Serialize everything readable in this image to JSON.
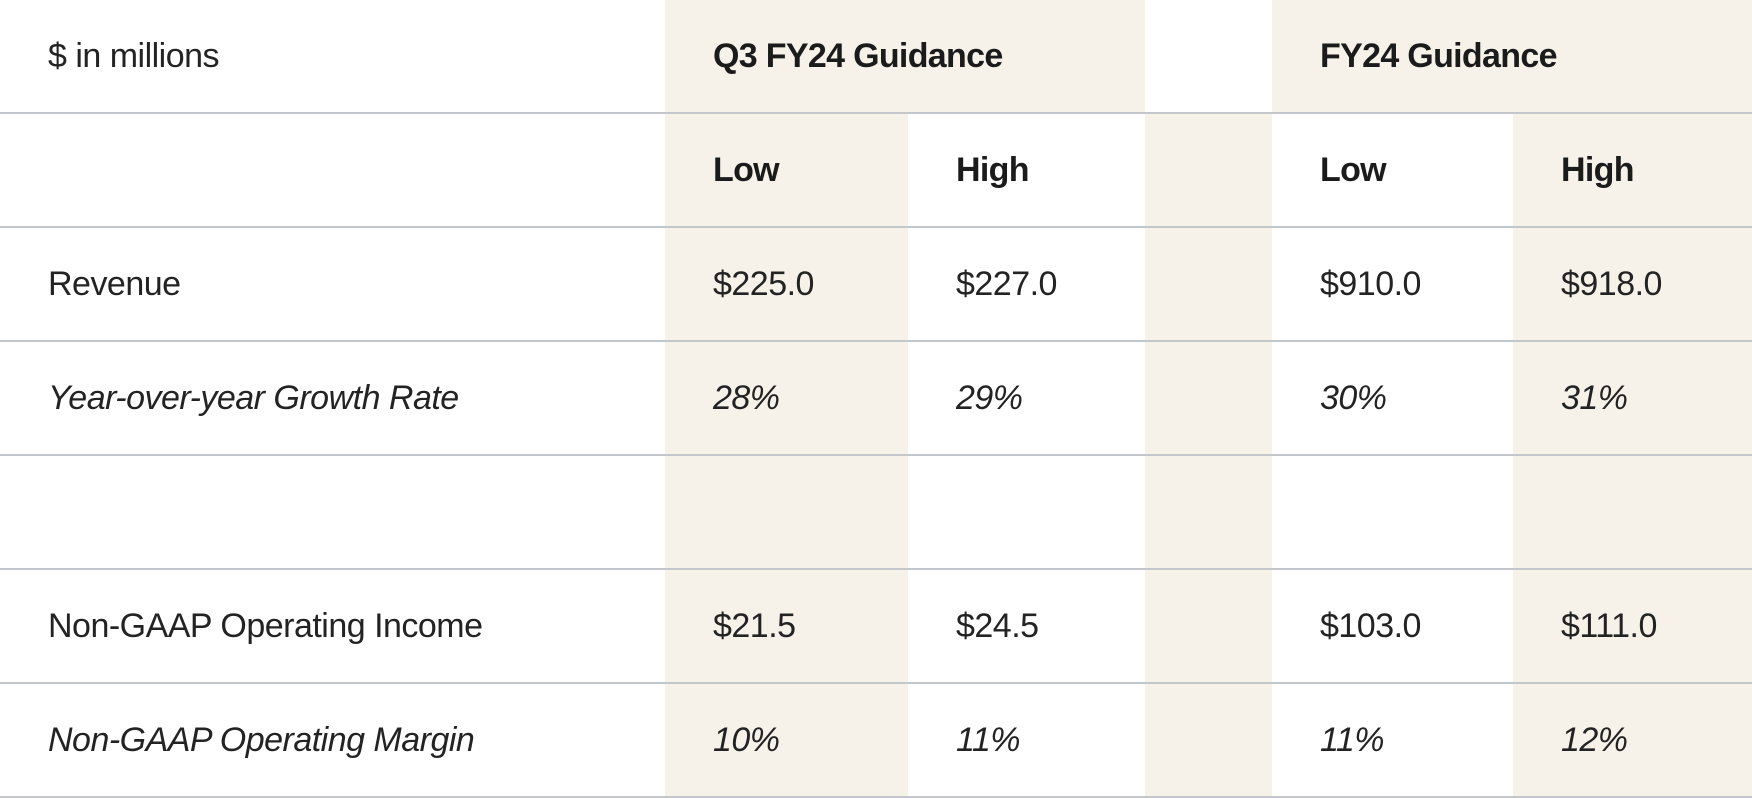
{
  "header": {
    "units_label": "$ in millions",
    "groups": [
      {
        "label": "Q3 FY24 Guidance"
      },
      {
        "label": "FY24 Guidance"
      }
    ],
    "subcolumns": [
      "Low",
      "High",
      "Low",
      "High"
    ]
  },
  "body": {
    "rows": [
      {
        "label": "Revenue",
        "style": "regular",
        "values": [
          "$225.0",
          "$227.0",
          "$910.0",
          "$918.0"
        ]
      },
      {
        "label": "Year-over-year Growth Rate",
        "style": "italic",
        "values": [
          "28%",
          "29%",
          "30%",
          "31%"
        ]
      },
      {
        "label": "",
        "style": "regular",
        "values": [
          "",
          "",
          "",
          ""
        ]
      },
      {
        "label": "Non-GAAP Operating Income",
        "style": "regular",
        "values": [
          "$21.5",
          "$24.5",
          "$103.0",
          "$111.0"
        ]
      },
      {
        "label": "Non-GAAP Operating Margin",
        "style": "italic",
        "values": [
          "10%",
          "11%",
          "11%",
          "12%"
        ]
      }
    ]
  },
  "colors": {
    "stripe": "#f7f2e9",
    "divider": "#c3c7cb",
    "text": "#232323",
    "heading": "#1b1b1b",
    "background": "#ffffff"
  },
  "chart_data": {
    "type": "table",
    "units": "$ in millions",
    "column_groups": [
      "Q3 FY24 Guidance",
      "FY24 Guidance"
    ],
    "columns": [
      "Q3 FY24 Low",
      "Q3 FY24 High",
      "FY24 Low",
      "FY24 High"
    ],
    "rows": [
      {
        "label": "Revenue",
        "values": [
          "$225.0",
          "$227.0",
          "$910.0",
          "$918.0"
        ]
      },
      {
        "label": "Year-over-year Growth Rate",
        "values": [
          "28%",
          "29%",
          "30%",
          "31%"
        ]
      },
      {
        "label": "Non-GAAP Operating Income",
        "values": [
          "$21.5",
          "$24.5",
          "$103.0",
          "$111.0"
        ]
      },
      {
        "label": "Non-GAAP Operating Margin",
        "values": [
          "10%",
          "11%",
          "11%",
          "12%"
        ]
      }
    ],
    "layout": {
      "shaded_columns": [
        "Q3 FY24 Low",
        "FY24 High",
        "spacer"
      ],
      "header_bands_shaded": true,
      "grid": "horizontal-only"
    }
  }
}
